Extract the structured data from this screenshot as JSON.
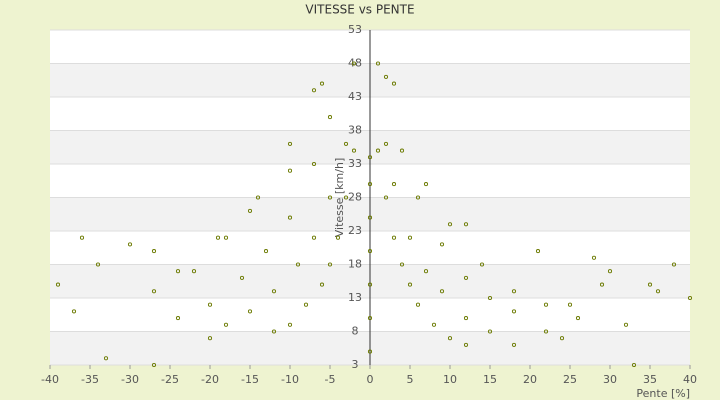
{
  "chart_data": {
    "type": "scatter",
    "title": "VITESSE vs PENTE",
    "x_label": "Pente [%]",
    "y_label": "Vitesse [km/h]",
    "series": [
      {
        "color": "#6b7a00",
        "x": [
          -2,
          -3,
          -4,
          -5,
          -6,
          -8,
          -10,
          -12,
          -3,
          -5,
          -7,
          -9,
          -12,
          -15,
          -18,
          -20,
          -5,
          -7,
          -10,
          -13,
          -16,
          -20,
          -24,
          -7,
          -10,
          -14,
          -18,
          -22,
          -27,
          1,
          2,
          3,
          4,
          5,
          6,
          8,
          10,
          12,
          2,
          3,
          5,
          7,
          9,
          12,
          15,
          18,
          4,
          6,
          9,
          12,
          15,
          18,
          22,
          7,
          10,
          14,
          18,
          22,
          26,
          -36,
          -39,
          -34,
          -30,
          -27,
          -24,
          -19,
          -15,
          -10,
          -6,
          -2,
          1,
          3,
          2,
          -37,
          -33,
          -27,
          33,
          28,
          30,
          35,
          38,
          40,
          25,
          21,
          12,
          24,
          32,
          36,
          29,
          0,
          0,
          0,
          0,
          0,
          0,
          0
        ],
        "y": [
          35,
          28,
          22,
          18,
          15,
          12,
          9,
          8,
          36,
          28,
          22,
          18,
          14,
          11,
          9,
          7,
          40,
          33,
          25,
          20,
          16,
          12,
          10,
          44,
          36,
          28,
          22,
          17,
          14,
          35,
          28,
          22,
          18,
          15,
          12,
          9,
          7,
          6,
          36,
          30,
          22,
          17,
          14,
          10,
          8,
          6,
          35,
          28,
          21,
          16,
          13,
          11,
          8,
          30,
          24,
          18,
          14,
          12,
          10,
          22,
          15,
          18,
          21,
          20,
          17,
          22,
          26,
          32,
          45,
          48,
          48,
          45,
          46,
          11,
          4,
          3,
          3,
          19,
          17,
          15,
          18,
          13,
          12,
          20,
          24,
          7,
          9,
          14,
          15,
          5,
          10,
          15,
          20,
          25,
          30,
          34
        ]
      }
    ],
    "xlim": [
      -40,
      40
    ],
    "xticks": [
      -40,
      -35,
      -30,
      -25,
      -20,
      -15,
      -10,
      -5,
      0,
      5,
      10,
      15,
      20,
      25,
      30,
      35,
      40
    ],
    "ylim": [
      3,
      53
    ],
    "yticks": [
      3,
      8,
      13,
      18,
      23,
      28,
      33,
      38,
      43,
      48,
      53
    ],
    "grid": true
  }
}
